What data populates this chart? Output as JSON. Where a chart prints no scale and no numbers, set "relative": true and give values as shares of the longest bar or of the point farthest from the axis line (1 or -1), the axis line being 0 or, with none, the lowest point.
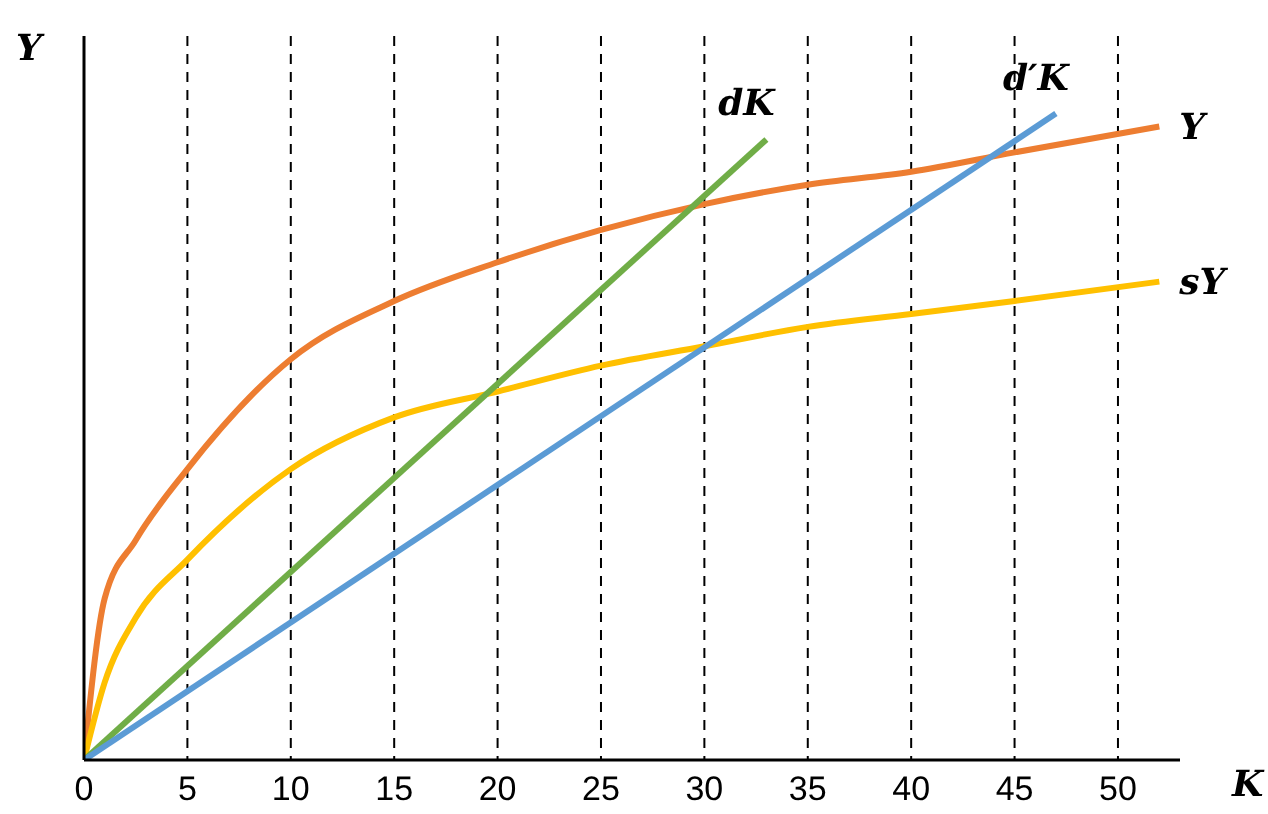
{
  "chart_data": {
    "type": "line",
    "relative": true,
    "xlabel": "K",
    "ylabel": "Y",
    "xlim": [
      0,
      53
    ],
    "xticks": [
      0,
      5,
      10,
      15,
      20,
      25,
      30,
      35,
      40,
      45,
      50
    ],
    "grid": "x",
    "line_style": "solid",
    "marker": "none",
    "series": [
      {
        "name": "Y",
        "color": "#ed7d31",
        "x": [
          0,
          1,
          2.5,
          5,
          10,
          15,
          20,
          25,
          30,
          35,
          40,
          45,
          52
        ],
        "values": [
          0,
          0.25,
          0.34,
          0.45,
          0.62,
          0.71,
          0.77,
          0.82,
          0.86,
          0.89,
          0.91,
          0.94,
          0.98
        ]
      },
      {
        "name": "sY",
        "color": "#ffc000",
        "x": [
          0,
          1,
          2.5,
          5,
          10,
          15,
          20,
          25,
          30,
          35,
          40,
          45,
          52
        ],
        "values": [
          0,
          0.12,
          0.22,
          0.31,
          0.45,
          0.53,
          0.57,
          0.61,
          0.64,
          0.67,
          0.69,
          0.71,
          0.74
        ]
      },
      {
        "name": "dK",
        "color": "#70ad47",
        "x": [
          0,
          33
        ],
        "values": [
          0,
          0.96
        ]
      },
      {
        "name": "d′K",
        "color": "#5b9bd5",
        "x": [
          0,
          47
        ],
        "values": [
          0,
          1
        ]
      }
    ]
  }
}
